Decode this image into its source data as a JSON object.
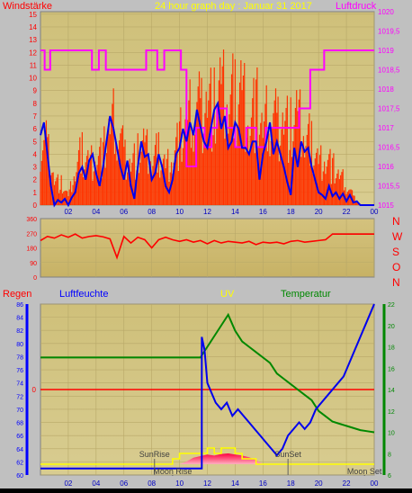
{
  "header": {
    "left_label": "Windstärke",
    "title": "24 hour graph day : Januar 31 2017",
    "right_label": "Luftdruck"
  },
  "lower_header": {
    "regen": "Regen",
    "luftfeuchte": "Luftfeuchte",
    "uv": "UV",
    "temperatur": "Temperatur"
  },
  "compass": [
    "N",
    "W",
    "S",
    "O",
    "N"
  ],
  "annotations": {
    "sunrise": "SunRise",
    "moonrise": "Moon Rise",
    "sunset": "SunSet",
    "moonset": "Moon Set"
  },
  "colors": {
    "background": "#c0c0c0",
    "plot_top": "#cfc07a",
    "plot_bottom": "#d7cc8e",
    "wind": "#ff2000",
    "gust": "#ff3300",
    "pressure": "#ff00ff",
    "humidity": "#0000ff",
    "temperature": "#008800",
    "uv": "#ffff00",
    "solar": "#ff0040",
    "rain": "#ff0000",
    "title": "#ffff00",
    "direction": "#ff0000"
  },
  "chart_data": [
    {
      "type": "line",
      "name": "wind_pressure",
      "x_ticks": [
        "02",
        "04",
        "06",
        "08",
        "10",
        "12",
        "14",
        "16",
        "18",
        "20",
        "22",
        "00"
      ],
      "y_left_ticks": [
        0,
        1,
        2,
        3,
        4,
        5,
        6,
        7,
        8,
        9,
        10,
        11,
        12,
        13,
        14,
        15
      ],
      "y_right_ticks": [
        "1015",
        "1015,5",
        "1016",
        "1016,5",
        "1017",
        "1017,5",
        "1018",
        "1018,5",
        "1019",
        "1019,5",
        "1020"
      ],
      "ylim_left": [
        0,
        15.2
      ],
      "ylim_right": [
        1015,
        1020
      ],
      "series": [
        {
          "label": "wind_average",
          "x": [
            0,
            0.25,
            0.5,
            0.75,
            1,
            1.25,
            1.5,
            1.75,
            2,
            2.25,
            2.5,
            2.75,
            3,
            3.25,
            3.5,
            3.75,
            4,
            4.25,
            4.5,
            4.75,
            5,
            5.25,
            5.5,
            5.75,
            6,
            6.25,
            6.5,
            6.75,
            7,
            7.25,
            7.5,
            7.75,
            8,
            8.25,
            8.5,
            8.75,
            9,
            9.25,
            9.5,
            9.75,
            10,
            10.25,
            10.5,
            10.75,
            11,
            11.25,
            11.5,
            11.75,
            12,
            12.25,
            12.5,
            12.75,
            13,
            13.25,
            13.5,
            13.75,
            14,
            14.25,
            14.5,
            14.75,
            15,
            15.25,
            15.5,
            15.75,
            16,
            16.25,
            16.5,
            16.75,
            17,
            17.25,
            17.5,
            17.75,
            18,
            18.25,
            18.5,
            18.75,
            19,
            19.25,
            19.5,
            19.75,
            20,
            20.25,
            20.5,
            20.75,
            21,
            21.25,
            21.5,
            21.75,
            22,
            22.25,
            22.5,
            22.75,
            23,
            23.25,
            23.5,
            23.75,
            24
          ],
          "y": [
            5.5,
            6.5,
            4,
            1.5,
            0,
            0.4,
            0.2,
            0.5,
            0,
            0.6,
            1,
            2.5,
            3,
            2,
            3.5,
            4,
            2.5,
            1.5,
            3,
            5,
            7,
            6,
            4.5,
            3,
            2,
            3.5,
            1.5,
            0.5,
            3,
            5,
            3.8,
            4,
            2,
            2.5,
            4,
            3,
            1.5,
            1,
            2,
            4,
            4.5,
            6,
            5,
            6.5,
            5.5,
            7.5,
            6.2,
            5,
            4.5,
            6,
            7.5,
            8,
            6,
            7,
            4.5,
            5,
            6.5,
            6,
            4.5,
            4.5,
            4,
            5,
            5,
            2,
            4,
            5,
            6.5,
            4,
            5,
            4,
            3,
            1.8,
            0.8,
            4.5,
            3,
            5,
            4.2,
            4.5,
            3,
            2,
            1,
            0.8,
            0.5,
            1.5,
            0.7,
            1,
            0.5,
            0.9,
            0.3,
            0.8,
            0.2,
            0.3,
            0,
            0,
            0,
            0,
            0
          ]
        },
        {
          "label": "wind_gust",
          "x": [
            0,
            0.5,
            1,
            1.5,
            2,
            2.5,
            3,
            3.5,
            4,
            4.5,
            5,
            5.5,
            6,
            6.5,
            7,
            7.5,
            8,
            8.5,
            9,
            9.5,
            10,
            10.5,
            11,
            11.5,
            12,
            12.5,
            13,
            13.5,
            14,
            14.5,
            15,
            15.5,
            16,
            16.5,
            17,
            17.5,
            18,
            18.5,
            19,
            19.5,
            20,
            20.5,
            21,
            21.5,
            22,
            22.5,
            23,
            23.5,
            24
          ],
          "y": [
            7.5,
            7,
            3,
            2.5,
            1,
            4,
            6.5,
            5,
            6,
            6,
            9.5,
            10,
            6,
            5,
            6,
            7,
            5,
            6.5,
            4.5,
            6,
            8,
            9,
            12,
            11,
            13,
            11.5,
            13.5,
            12,
            13,
            14,
            10,
            12,
            9,
            11,
            9.5,
            10.5,
            9,
            10.5,
            8,
            7.5,
            5,
            6,
            4.5,
            3.5,
            2.5,
            1,
            0,
            0,
            0
          ]
        },
        {
          "label": "luftdruck",
          "axis": "right",
          "x": [
            0,
            0.3,
            0.3,
            0.7,
            0.7,
            3.7,
            3.7,
            4.2,
            4.2,
            4.7,
            4.7,
            5.2,
            5.2,
            7.6,
            7.6,
            8.4,
            8.4,
            8.9,
            8.9,
            10.1,
            10.1,
            10.5,
            10.5,
            11.2,
            11.2,
            11.8,
            11.8,
            12.3,
            12.3,
            12.7,
            12.7,
            13.4,
            13.4,
            14.0,
            14.0,
            14.8,
            14.8,
            15.5,
            15.5,
            16.2,
            16.2,
            17.0,
            17.0,
            18.6,
            18.6,
            19.4,
            19.4,
            20.4,
            20.4,
            21.2,
            21.2,
            24
          ],
          "y": [
            1019,
            1019,
            1018.5,
            1018.5,
            1019,
            1019,
            1018.5,
            1018.5,
            1019,
            1019,
            1018.5,
            1018.5,
            1018.5,
            1018.5,
            1019,
            1019,
            1018.5,
            1018.5,
            1019,
            1019,
            1018.5,
            1018.5,
            1016,
            1016,
            1017,
            1017,
            1016.5,
            1016.5,
            1017,
            1017,
            1017.5,
            1017.5,
            1017,
            1017,
            1016.5,
            1016.5,
            1017,
            1017,
            1016.5,
            1016.5,
            1017,
            1017,
            1017,
            1017,
            1017.5,
            1017.5,
            1018.5,
            1018.5,
            1019,
            1019,
            1019,
            1019
          ]
        }
      ]
    },
    {
      "type": "line",
      "name": "wind_direction",
      "x_ticks": [],
      "y_ticks": [
        0,
        45,
        90,
        135,
        180,
        225,
        270,
        315,
        360
      ],
      "ylim": [
        0,
        360
      ],
      "series": [
        {
          "label": "direction",
          "x": [
            0,
            0.5,
            1,
            1.5,
            2,
            2.5,
            3,
            3.5,
            4,
            4.5,
            5,
            5.5,
            6,
            6.5,
            7,
            7.5,
            8,
            8.5,
            9,
            9.5,
            10,
            10.5,
            11,
            11.5,
            12,
            12.5,
            13,
            13.5,
            14,
            14.5,
            15,
            15.5,
            16,
            16.5,
            17,
            17.5,
            18,
            18.5,
            19,
            19.5,
            20,
            20.5,
            21,
            21.5,
            22,
            22.5,
            23,
            23.5,
            24
          ],
          "y": [
            225,
            250,
            240,
            260,
            245,
            265,
            240,
            250,
            255,
            248,
            235,
            120,
            250,
            210,
            245,
            230,
            180,
            230,
            245,
            230,
            220,
            230,
            215,
            225,
            205,
            225,
            210,
            220,
            215,
            210,
            220,
            200,
            215,
            210,
            215,
            205,
            220,
            225,
            215,
            220,
            225,
            230,
            265,
            265,
            265,
            265,
            265,
            265,
            265
          ]
        }
      ]
    },
    {
      "type": "line",
      "name": "humidity_temperature_uv",
      "x_ticks": [
        "02",
        "04",
        "06",
        "08",
        "10",
        "12",
        "14",
        "16",
        "18",
        "20",
        "22",
        "00"
      ],
      "y_left_ticks": [
        60,
        62,
        64,
        66,
        68,
        70,
        72,
        74,
        76,
        78,
        80,
        82,
        84,
        86
      ],
      "y_right_ticks": [
        6,
        8,
        10,
        12,
        14,
        16,
        18,
        20,
        22
      ],
      "y_rain_ticks": [
        0
      ],
      "ylim_left": [
        60,
        86
      ],
      "ylim_right": [
        6,
        22
      ],
      "series": [
        {
          "label": "luftfeuchte",
          "x": [
            0,
            11.5,
            11.6,
            11.6,
            11.8,
            12.0,
            12.2,
            12.6,
            13,
            13.4,
            13.8,
            14.2,
            14.6,
            15,
            15.4,
            15.8,
            16.2,
            16.6,
            17,
            17.4,
            17.8,
            18.2,
            18.6,
            19,
            19.4,
            19.8,
            20.2,
            20.6,
            21,
            21.4,
            21.8,
            22.2,
            22.6,
            23,
            23.4,
            23.8,
            24
          ],
          "y": [
            61,
            61,
            61,
            81,
            79,
            74,
            73,
            71,
            70,
            71,
            69,
            70,
            69,
            68,
            67,
            66,
            65,
            64,
            63,
            64,
            66,
            67,
            68,
            67,
            68,
            70,
            71,
            72,
            73,
            74,
            75,
            77,
            79,
            81,
            83,
            85,
            86
          ]
        },
        {
          "label": "temperatur",
          "x": [
            0,
            11.5,
            12,
            12.5,
            13,
            13.5,
            14,
            14.5,
            15,
            15.5,
            16,
            16.5,
            17,
            17.5,
            18,
            18.5,
            19,
            19.5,
            20,
            20.5,
            21,
            21.5,
            22,
            22.5,
            23,
            23.5,
            24
          ],
          "y": [
            17,
            17,
            18,
            19,
            20,
            21,
            19.5,
            18.5,
            18,
            17.5,
            17,
            16.5,
            15.5,
            15,
            14.5,
            14,
            13.5,
            13,
            12,
            11.5,
            11,
            10.8,
            10.6,
            10.4,
            10.2,
            10.1,
            10
          ]
        },
        {
          "label": "uv",
          "x": [
            0,
            9.5,
            9.5,
            10,
            10,
            10.5,
            10.5,
            12,
            12,
            12.5,
            12.5,
            13,
            13,
            14,
            14,
            14.5,
            14.5,
            15.5,
            15.5,
            16,
            16,
            24
          ],
          "y": [
            0,
            0,
            1,
            1,
            2,
            2,
            2,
            2,
            3,
            3,
            2,
            2,
            3,
            3,
            2,
            2,
            1,
            1,
            0,
            0,
            0,
            0
          ]
        },
        {
          "label": "solar",
          "x": [
            0,
            10,
            10.5,
            11,
            11.5,
            12,
            12.5,
            13,
            13.5,
            14,
            14.5,
            15,
            15.5,
            16,
            24
          ],
          "y": [
            0,
            0,
            0.5,
            1.2,
            1.5,
            1.8,
            1.6,
            1.9,
            2,
            1.8,
            1.6,
            1.3,
            0.8,
            0,
            0
          ]
        }
      ],
      "rain_level": 0,
      "sunrise_hour": 8.2,
      "sunset_hour": 17.8,
      "moonrise_hour": 9.5,
      "moonset_hour": 23.3
    }
  ]
}
